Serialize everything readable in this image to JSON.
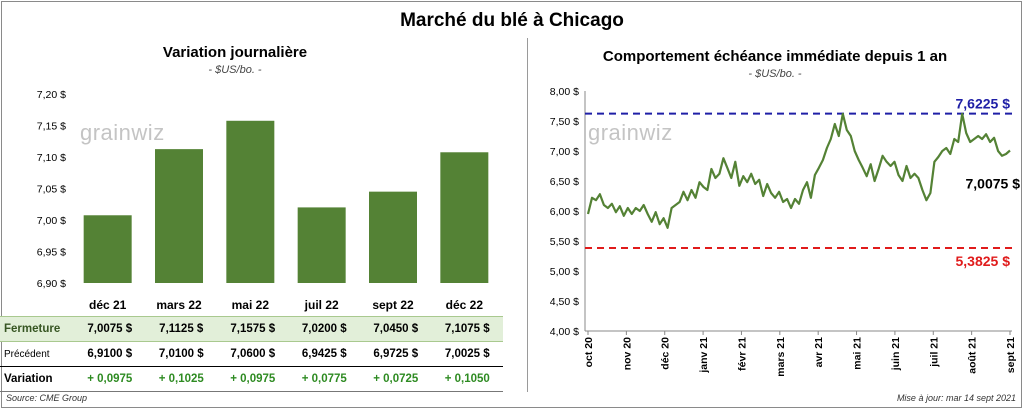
{
  "main_title": "Marché du blé à Chicago",
  "left_panel": {
    "title": "Variation  journalière",
    "subtitle": "- $US/bo. -",
    "watermark": "grainwiz"
  },
  "right_panel": {
    "title": "Comportement  échéance immédiate depuis 1 an",
    "subtitle": "- $US/bo. -",
    "watermark": "grainwiz"
  },
  "table": {
    "rows": [
      {
        "label": "Fermeture",
        "values": [
          "7,0075  $",
          "7,1125  $",
          "7,1575  $",
          "7,0200  $",
          "7,0450  $",
          "7,1075  $"
        ]
      },
      {
        "label": "Précédent",
        "values": [
          "6,9100  $",
          "7,0100  $",
          "7,0600  $",
          "6,9425  $",
          "6,9725  $",
          "7,0025  $"
        ]
      },
      {
        "label": "Variation",
        "values": [
          "+ 0,0975",
          "+ 0,1025",
          "+ 0,0975",
          "+ 0,0775",
          "+ 0,0725",
          "+ 0,1050"
        ]
      }
    ]
  },
  "footer": {
    "source": "Source: CME Group",
    "updated": "Mise à jour: mar 14 sept 2021"
  },
  "colors": {
    "bar": "#548235",
    "line": "#548235",
    "high": "#1f1fa6",
    "low": "#e01b1b"
  },
  "chart_data": [
    {
      "type": "bar",
      "categories": [
        "déc 21",
        "mars 22",
        "mai 22",
        "juil 22",
        "sept 22",
        "déc 22"
      ],
      "values": [
        7.0075,
        7.1125,
        7.1575,
        7.02,
        7.045,
        7.1075
      ],
      "ylim": [
        6.9,
        7.2
      ],
      "yticks": [
        "6,90 $",
        "6,95 $",
        "7,00 $",
        "7,05 $",
        "7,10 $",
        "7,15 $",
        "7,20 $"
      ],
      "ytick_values": [
        6.9,
        6.95,
        7.0,
        7.05,
        7.1,
        7.15,
        7.2
      ],
      "xlabel": "",
      "ylabel": ""
    },
    {
      "type": "line",
      "ylim": [
        4.0,
        8.0
      ],
      "yticks": [
        "4,00 $",
        "4,50 $",
        "5,00 $",
        "5,50 $",
        "6,00 $",
        "6,50 $",
        "7,00 $",
        "7,50 $",
        "8,00 $"
      ],
      "ytick_values": [
        4.0,
        4.5,
        5.0,
        5.5,
        6.0,
        6.5,
        7.0,
        7.5,
        8.0
      ],
      "xticks": [
        "oct 20",
        "nov 20",
        "déc 20",
        "janv 21",
        "févr 21",
        "mars 21",
        "avr 21",
        "mai 21",
        "juin 21",
        "juil 21",
        "août 21",
        "sept 21"
      ],
      "series": [
        {
          "values": [
            5.95,
            6.22,
            6.18,
            6.28,
            6.1,
            6.05,
            6.12,
            5.98,
            6.08,
            5.92,
            6.05,
            5.95,
            6.05,
            6.0,
            6.1,
            5.95,
            5.82,
            5.98,
            5.78,
            5.88,
            5.72,
            6.05,
            6.1,
            6.15,
            6.32,
            6.18,
            6.35,
            6.22,
            6.48,
            6.4,
            6.35,
            6.7,
            6.55,
            6.62,
            6.88,
            6.72,
            6.55,
            6.82,
            6.42,
            6.58,
            6.48,
            6.62,
            6.45,
            6.52,
            6.25,
            6.45,
            6.3,
            6.22,
            6.32,
            6.15,
            6.2,
            6.05,
            6.2,
            6.12,
            6.35,
            6.48,
            6.22,
            6.6,
            6.72,
            6.85,
            7.05,
            7.2,
            7.45,
            7.25,
            7.62,
            7.35,
            7.25,
            7.0,
            6.85,
            6.72,
            6.58,
            6.78,
            6.5,
            6.7,
            6.92,
            6.82,
            6.75,
            6.82,
            6.6,
            6.5,
            6.75,
            6.55,
            6.62,
            6.55,
            6.35,
            6.18,
            6.3,
            6.82,
            6.9,
            7.0,
            7.05,
            6.95,
            7.2,
            7.15,
            7.62,
            7.3,
            7.15,
            7.2,
            7.25,
            7.2,
            7.28,
            7.15,
            7.22,
            7.0,
            6.92,
            6.95,
            7.0075
          ],
          "x_start": "2020-09-14",
          "x_end": "2021-09-14"
        }
      ],
      "reference_lines": [
        {
          "label": "7,6225  $",
          "value": 7.6225
        },
        {
          "label": "5,3825  $",
          "value": 5.3825
        }
      ],
      "last_value_label": "7,0075 $",
      "last_value": 7.0075
    }
  ]
}
